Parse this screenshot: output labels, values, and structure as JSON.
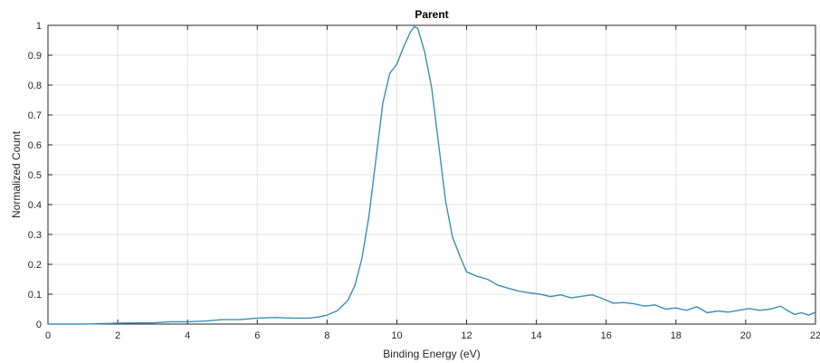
{
  "chart_data": {
    "type": "line",
    "title": "Parent",
    "xlabel": "Binding Energy (eV)",
    "ylabel": "Normalized Count",
    "xlim": [
      0,
      22
    ],
    "ylim": [
      0,
      1
    ],
    "grid": true,
    "x_ticks": [
      0,
      2,
      4,
      6,
      8,
      10,
      12,
      14,
      16,
      18,
      20,
      22
    ],
    "y_ticks": [
      0,
      0.1,
      0.2,
      0.3,
      0.4,
      0.5,
      0.6,
      0.7,
      0.8,
      0.9,
      1
    ],
    "y_tick_labels": [
      "0",
      "0.1",
      "0.2",
      "0.3",
      "0.4",
      "0.5",
      "0.6",
      "0.7",
      "0.8",
      "0.9",
      "1"
    ],
    "series": [
      {
        "color": "#3a8fb7",
        "points": [
          [
            0,
            0
          ],
          [
            1,
            0
          ],
          [
            2,
            0.003
          ],
          [
            2.5,
            0.004
          ],
          [
            3,
            0.004
          ],
          [
            3.5,
            0.008
          ],
          [
            4,
            0.008
          ],
          [
            4.5,
            0.01
          ],
          [
            5,
            0.015
          ],
          [
            5.5,
            0.015
          ],
          [
            6,
            0.02
          ],
          [
            6.5,
            0.022
          ],
          [
            7,
            0.02
          ],
          [
            7.5,
            0.02
          ],
          [
            7.8,
            0.025
          ],
          [
            8.0,
            0.03
          ],
          [
            8.3,
            0.045
          ],
          [
            8.6,
            0.08
          ],
          [
            8.8,
            0.13
          ],
          [
            9.0,
            0.22
          ],
          [
            9.2,
            0.36
          ],
          [
            9.4,
            0.55
          ],
          [
            9.6,
            0.74
          ],
          [
            9.8,
            0.84
          ],
          [
            10.0,
            0.87
          ],
          [
            10.2,
            0.93
          ],
          [
            10.4,
            0.98
          ],
          [
            10.5,
            0.995
          ],
          [
            10.6,
            0.99
          ],
          [
            10.8,
            0.91
          ],
          [
            11.0,
            0.79
          ],
          [
            11.2,
            0.6
          ],
          [
            11.4,
            0.41
          ],
          [
            11.6,
            0.29
          ],
          [
            11.8,
            0.23
          ],
          [
            12.0,
            0.175
          ],
          [
            12.3,
            0.16
          ],
          [
            12.6,
            0.15
          ],
          [
            12.9,
            0.13
          ],
          [
            13.2,
            0.12
          ],
          [
            13.5,
            0.11
          ],
          [
            13.8,
            0.105
          ],
          [
            14.1,
            0.1
          ],
          [
            14.4,
            0.092
          ],
          [
            14.7,
            0.098
          ],
          [
            15.0,
            0.088
          ],
          [
            15.3,
            0.093
          ],
          [
            15.6,
            0.098
          ],
          [
            15.9,
            0.085
          ],
          [
            16.2,
            0.07
          ],
          [
            16.5,
            0.072
          ],
          [
            16.8,
            0.068
          ],
          [
            17.1,
            0.06
          ],
          [
            17.4,
            0.064
          ],
          [
            17.7,
            0.05
          ],
          [
            18.0,
            0.054
          ],
          [
            18.3,
            0.046
          ],
          [
            18.6,
            0.058
          ],
          [
            18.9,
            0.038
          ],
          [
            19.2,
            0.044
          ],
          [
            19.5,
            0.04
          ],
          [
            19.8,
            0.046
          ],
          [
            20.1,
            0.052
          ],
          [
            20.4,
            0.046
          ],
          [
            20.7,
            0.05
          ],
          [
            21.0,
            0.06
          ],
          [
            21.2,
            0.045
          ],
          [
            21.4,
            0.032
          ],
          [
            21.6,
            0.038
          ],
          [
            21.8,
            0.03
          ],
          [
            22.0,
            0.04
          ]
        ]
      }
    ]
  }
}
